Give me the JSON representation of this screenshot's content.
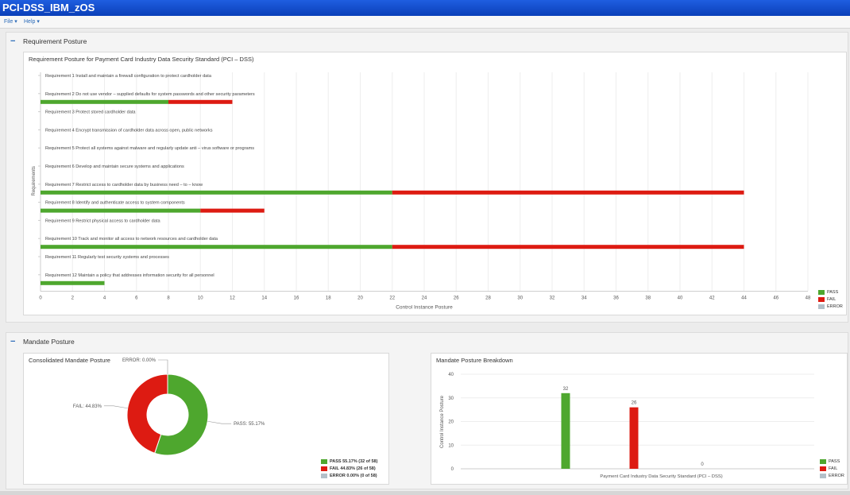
{
  "window": {
    "title": "PCI-DSS_IBM_zOS"
  },
  "menu": [
    {
      "label": "File ▾"
    },
    {
      "label": "Help ▾"
    }
  ],
  "colors": {
    "pass": "#4ea72e",
    "fail": "#dd1b12",
    "error": "#b3c0c9"
  },
  "requirement_panel": {
    "title": "Requirement Posture",
    "chart_title": "Requirement Posture for Payment Card Industry Data Security Standard (PCI – DSS)"
  },
  "mandate_panel": {
    "title": "Mandate Posture",
    "donut_title": "Consolidated Mandate Posture",
    "breakdown_title": "Mandate Posture Breakdown",
    "donut_legend": [
      {
        "label": "PASS 55.17% (32 of 58)",
        "color": "#4ea72e"
      },
      {
        "label": "FAIL 44.83% (26 of 58)",
        "color": "#dd1b12"
      },
      {
        "label": "ERROR 0.00% (0 of 58)",
        "color": "#b3c0c9"
      }
    ],
    "breakdown_legend": [
      {
        "label": "PASS",
        "color": "#4ea72e"
      },
      {
        "label": "FAIL",
        "color": "#dd1b12"
      },
      {
        "label": "ERROR",
        "color": "#b3c0c9"
      }
    ]
  },
  "chart_data": [
    {
      "type": "bar",
      "orientation": "horizontal",
      "stacked": true,
      "title": "Requirement Posture for Payment Card Industry Data Security Standard (PCI – DSS)",
      "xlabel": "Control Instance Posture",
      "ylabel": "Requirements",
      "xlim": [
        0,
        48
      ],
      "xticks": [
        "0",
        "2",
        "4",
        "6",
        "8",
        "10",
        "12",
        "14",
        "16",
        "18",
        "20",
        "22",
        "24",
        "26",
        "28",
        "30",
        "32",
        "34",
        "36",
        "38",
        "40",
        "42",
        "44",
        "46",
        "48"
      ],
      "legend": {
        "position": "bottom-right",
        "entries": [
          "PASS",
          "FAIL",
          "ERROR"
        ]
      },
      "categories": [
        "Requirement 1 Install and maintain a firewall configuration to protect cardholder data",
        "Requirement 2 Do not use vendor – supplied defaults for system passwords and other security parameters",
        "Requirement 3 Protect stored cardholder data",
        "Requirement 4 Encrypt transmission of cardholder data across open, public networks",
        "Requirement 5 Protect all systems against malware and regularly update anti – virus software or programs",
        "Requirement 6 Develop and maintain secure systems and applications",
        "Requirement 7 Restrict access to cardholder data by business need – to – know",
        "Requirement 8 Identify and authenticate access to system components",
        "Requirement 9 Restrict physical access to cardholder data",
        "Requirement 10 Track and monitor all access to network resources and cardholder data",
        "Requirement 11 Regularly test security systems and processes",
        "Requirement 12 Maintain a policy that addresses information security for all personnel"
      ],
      "series": [
        {
          "name": "PASS",
          "values": [
            0,
            8,
            0,
            0,
            0,
            0,
            22,
            10,
            0,
            22,
            0,
            4
          ]
        },
        {
          "name": "FAIL",
          "values": [
            0,
            4,
            0,
            0,
            0,
            0,
            22,
            4,
            0,
            22,
            0,
            0
          ]
        },
        {
          "name": "ERROR",
          "values": [
            0,
            0,
            0,
            0,
            0,
            0,
            0,
            0,
            0,
            0,
            0,
            0
          ]
        }
      ]
    },
    {
      "type": "pie",
      "donut": true,
      "title": "Consolidated Mandate Posture",
      "slices": [
        {
          "name": "PASS",
          "value": 55.17,
          "count": 32,
          "label": "PASS: 55.17%"
        },
        {
          "name": "FAIL",
          "value": 44.83,
          "count": 26,
          "label": "FAIL: 44.83%"
        },
        {
          "name": "ERROR",
          "value": 0.0,
          "count": 0,
          "label": "ERROR: 0.00%"
        }
      ],
      "total": 58
    },
    {
      "type": "bar",
      "title": "Mandate Posture Breakdown",
      "categories": [
        "Payment Card Industry Data Security Standard (PCI – DSS)"
      ],
      "xlabel": "Payment Card Industry Data Security Standard (PCI – DSS)",
      "ylabel": "Control Instance Posture",
      "ylim": [
        0,
        40
      ],
      "yticks": [
        "0",
        "10",
        "20",
        "30",
        "40"
      ],
      "series": [
        {
          "name": "PASS",
          "values": [
            32
          ],
          "label": "32"
        },
        {
          "name": "FAIL",
          "values": [
            26
          ],
          "label": "26"
        },
        {
          "name": "ERROR",
          "values": [
            0
          ],
          "label": "0"
        }
      ],
      "legend": {
        "position": "bottom-right",
        "entries": [
          "PASS",
          "FAIL",
          "ERROR"
        ]
      }
    }
  ]
}
